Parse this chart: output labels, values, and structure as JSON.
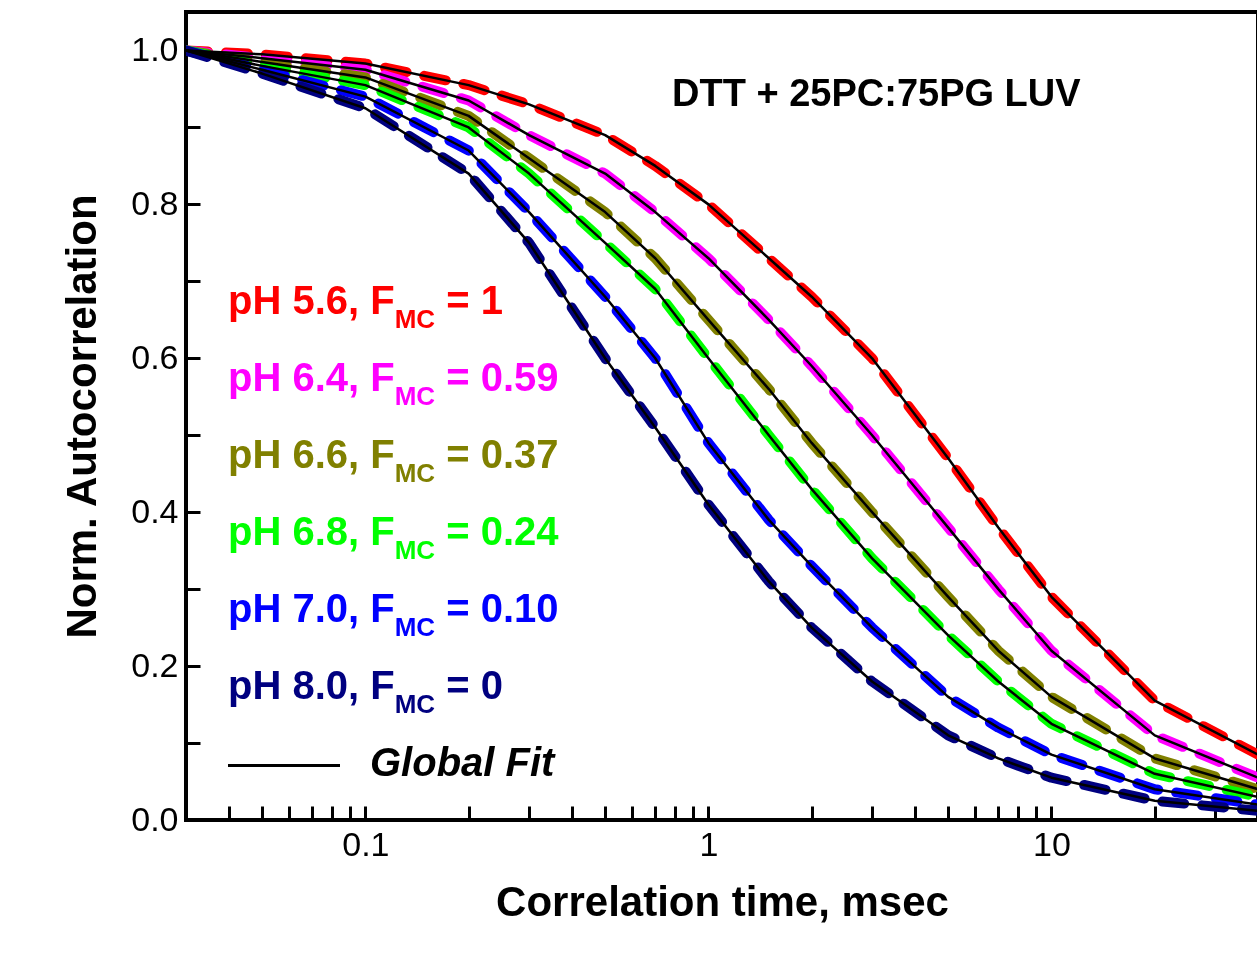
{
  "chart_data": {
    "type": "line",
    "xlabel": "Correlation time, msec",
    "ylabel": "Norm. Autocorrelation",
    "log": "x",
    "grid": false,
    "legend": "left",
    "annotations": [
      "DTT + 25PC:75PG LUV"
    ],
    "xlim": [
      0.03,
      40
    ],
    "ylim": [
      0,
      1.05
    ],
    "xticks": [
      {
        "value": 0.04,
        "label": null
      },
      {
        "value": 0.05,
        "label": null
      },
      {
        "value": 0.06,
        "label": null
      },
      {
        "value": 0.07,
        "label": null
      },
      {
        "value": 0.08,
        "label": null
      },
      {
        "value": 0.09,
        "label": null
      },
      0.1,
      {
        "value": 0.2,
        "label": null
      },
      {
        "value": 0.3,
        "label": null
      },
      {
        "value": 0.4,
        "label": null
      },
      {
        "value": 0.5,
        "label": null
      },
      {
        "value": 0.6,
        "label": null
      },
      {
        "value": 0.7,
        "label": null
      },
      {
        "value": 0.8,
        "label": null
      },
      {
        "value": 0.9,
        "label": null
      },
      1,
      {
        "value": 2,
        "label": null
      },
      {
        "value": 3,
        "label": null
      },
      {
        "value": 4,
        "label": null
      },
      {
        "value": 5,
        "label": null
      },
      {
        "value": 6,
        "label": null
      },
      {
        "value": 7,
        "label": null
      },
      {
        "value": 8,
        "label": null
      },
      {
        "value": 9,
        "label": null
      },
      10,
      {
        "value": 20,
        "label": null
      },
      {
        "value": 30,
        "label": null
      }
    ],
    "yticks": [
      {
        "value": 0,
        "label": "0.0"
      },
      {
        "value": 0.1,
        "label": null
      },
      0.2,
      {
        "value": 0.3,
        "label": null
      },
      0.4,
      {
        "value": 0.5,
        "label": null
      },
      0.6,
      {
        "value": 0.7,
        "label": null
      },
      0.8,
      {
        "value": 0.9,
        "label": null
      },
      {
        "value": 1,
        "label": "1.0"
      }
    ],
    "x": [
      0.03,
      0.05,
      0.1,
      0.2,
      0.3,
      0.5,
      0.7,
      1,
      1.5,
      2,
      3,
      5,
      7,
      10,
      20,
      40
    ],
    "series": [
      {
        "name": "pH 5.6, F$_{MC}$ = 1",
        "color": "#ff0000",
        "line_style": "dashed",
        "values": [
          1.0,
          0.995,
          0.983,
          0.955,
          0.93,
          0.89,
          0.85,
          0.8,
          0.73,
          0.68,
          0.6,
          0.47,
          0.38,
          0.29,
          0.155,
          0.085
        ]
      },
      {
        "name": "pH 6.4, F$_{MC}$ = 0.59",
        "color": "#ff00ff",
        "line_style": "dashed",
        "values": [
          1.0,
          0.99,
          0.975,
          0.935,
          0.89,
          0.84,
          0.79,
          0.73,
          0.65,
          0.59,
          0.5,
          0.38,
          0.3,
          0.22,
          0.11,
          0.055
        ]
      },
      {
        "name": "pH 6.6, F$_{MC}$ = 0.37",
        "color": "#808000",
        "line_style": "dashed",
        "values": [
          1.0,
          0.985,
          0.965,
          0.915,
          0.86,
          0.79,
          0.73,
          0.65,
          0.56,
          0.49,
          0.4,
          0.29,
          0.22,
          0.16,
          0.08,
          0.04
        ]
      },
      {
        "name": "pH 6.8, F$_{MC}$ = 0.24",
        "color": "#00ff00",
        "line_style": "dashed",
        "values": [
          1.0,
          0.98,
          0.955,
          0.9,
          0.84,
          0.75,
          0.69,
          0.6,
          0.5,
          0.43,
          0.34,
          0.24,
          0.18,
          0.125,
          0.06,
          0.03
        ]
      },
      {
        "name": "pH 7.0, F$_{MC}$ = 0.10",
        "color": "#0000ff",
        "line_style": "dashed",
        "values": [
          1.0,
          0.975,
          0.94,
          0.87,
          0.79,
          0.68,
          0.6,
          0.49,
          0.39,
          0.33,
          0.25,
          0.16,
          0.12,
          0.085,
          0.04,
          0.02
        ]
      },
      {
        "name": "pH 8.0, F$_{MC}$ = 0",
        "color": "#000080",
        "line_style": "dashed",
        "values": [
          1.0,
          0.97,
          0.925,
          0.84,
          0.75,
          0.6,
          0.51,
          0.41,
          0.31,
          0.25,
          0.18,
          0.11,
          0.08,
          0.055,
          0.025,
          0.012
        ]
      },
      {
        "name": "Global Fit",
        "color": "#000000",
        "line_style": "solid",
        "values": [
          1.0,
          0.995,
          0.983,
          0.955,
          0.93,
          0.89,
          0.85,
          0.8,
          0.73,
          0.68,
          0.6,
          0.47,
          0.38,
          0.29,
          0.155,
          0.085
        ]
      },
      {
        "color": "#000000",
        "line_style": "solid",
        "values": [
          1.0,
          0.99,
          0.975,
          0.935,
          0.89,
          0.84,
          0.79,
          0.73,
          0.65,
          0.59,
          0.5,
          0.38,
          0.3,
          0.22,
          0.11,
          0.055
        ]
      },
      {
        "color": "#000000",
        "line_style": "solid",
        "values": [
          1.0,
          0.985,
          0.965,
          0.915,
          0.86,
          0.79,
          0.73,
          0.65,
          0.56,
          0.49,
          0.4,
          0.29,
          0.22,
          0.16,
          0.08,
          0.04
        ]
      },
      {
        "color": "#000000",
        "line_style": "solid",
        "values": [
          1.0,
          0.98,
          0.955,
          0.9,
          0.84,
          0.75,
          0.69,
          0.6,
          0.5,
          0.43,
          0.34,
          0.24,
          0.18,
          0.125,
          0.06,
          0.03
        ]
      },
      {
        "color": "#000000",
        "line_style": "solid",
        "values": [
          1.0,
          0.975,
          0.94,
          0.87,
          0.79,
          0.68,
          0.6,
          0.49,
          0.39,
          0.33,
          0.25,
          0.16,
          0.12,
          0.085,
          0.04,
          0.02
        ]
      },
      {
        "color": "#000000",
        "line_style": "solid",
        "values": [
          1.0,
          0.97,
          0.925,
          0.84,
          0.75,
          0.6,
          0.51,
          0.41,
          0.31,
          0.25,
          0.18,
          0.11,
          0.08,
          0.055,
          0.025,
          0.012
        ]
      }
    ]
  }
}
